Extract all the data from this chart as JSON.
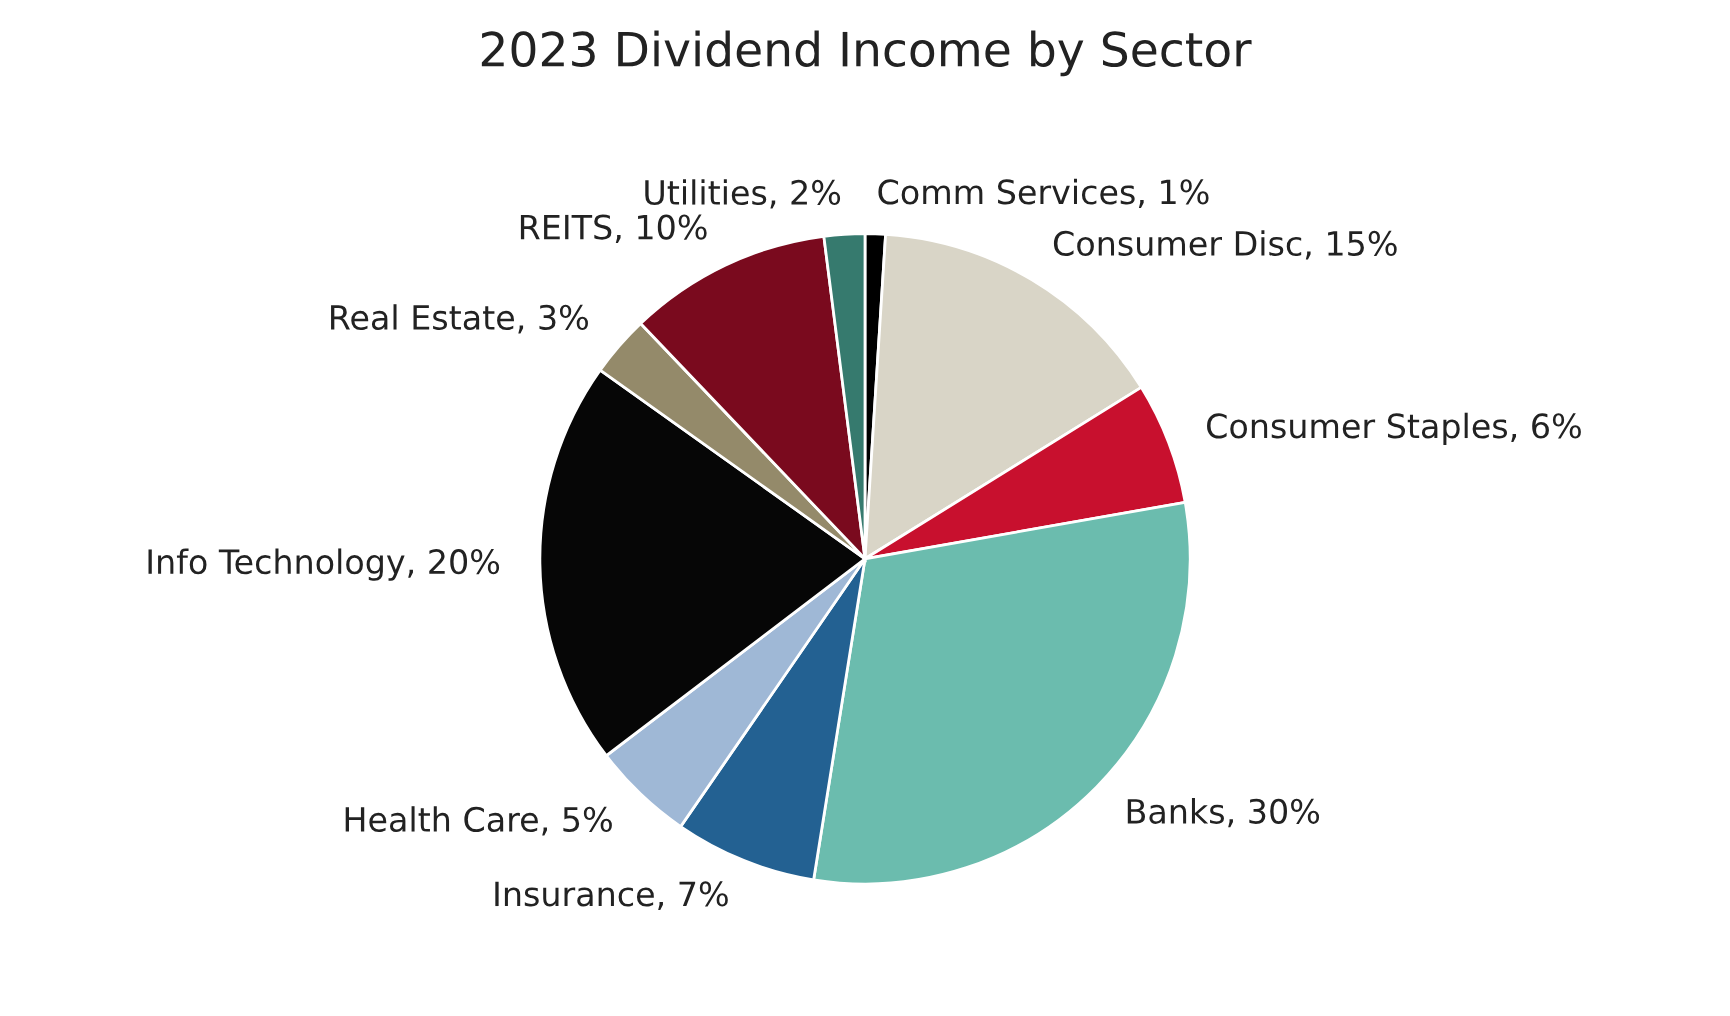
{
  "chart_data": {
    "type": "pie",
    "title": "2023 Dividend Income by Sector",
    "categories": [
      "Comm Services",
      "Consumer Disc",
      "Consumer Staples",
      "Banks",
      "Insurance",
      "Health Care",
      "Info Technology",
      "Real Estate",
      "REITS",
      "Utilities"
    ],
    "values": [
      1,
      15,
      6,
      30,
      7,
      5,
      20,
      3,
      10,
      2
    ],
    "value_labels": [
      "1%",
      "15%",
      "6%",
      "30%",
      "7%",
      "5%",
      "20%",
      "3%",
      "10%",
      "2%"
    ],
    "colors": [
      "#000000",
      "#d9d5c7",
      "#c8102e",
      "#6bbcae",
      "#236192",
      "#9fb8d6",
      "#060606",
      "#948a6a",
      "#7a0a1e",
      "#367a6e"
    ],
    "legend": false
  }
}
